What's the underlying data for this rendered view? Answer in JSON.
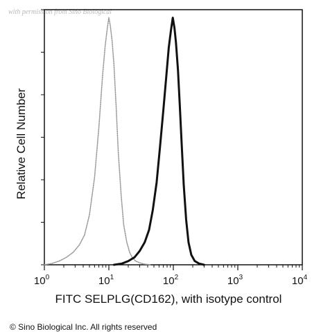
{
  "chart_data": {
    "type": "line",
    "title": "",
    "watermark": "with permission from Sino Biological",
    "xlabel": "FITC SELPLG(CD162), with isotype control",
    "ylabel": "Relative Cell Number",
    "xscale": "log",
    "xlim": [
      1,
      10000
    ],
    "ylim": [
      0,
      1
    ],
    "y_ticks_labeled": false,
    "grid": false,
    "legend": "none",
    "x_ticks": [
      {
        "base": "10",
        "exp": "0",
        "value": 1
      },
      {
        "base": "10",
        "exp": "1",
        "value": 10
      },
      {
        "base": "10",
        "exp": "2",
        "value": 100
      },
      {
        "base": "10",
        "exp": "3",
        "value": 1000
      },
      {
        "base": "10",
        "exp": "4",
        "value": 10000
      }
    ],
    "series": [
      {
        "color": "#9a9a9a",
        "style": "dotted",
        "x": [
          1.0,
          1.3,
          1.7,
          2.2,
          2.8,
          3.5,
          4.2,
          5.0,
          6.0,
          7.0,
          8.0,
          8.8,
          9.5,
          10.0,
          10.5,
          11.2,
          12.0,
          13.0,
          14.0,
          15.5,
          17.0,
          19.0,
          21.0,
          23.0,
          26.0,
          30.0,
          35.0,
          45.0
        ],
        "y": [
          0.0,
          0.005,
          0.015,
          0.03,
          0.05,
          0.08,
          0.12,
          0.2,
          0.35,
          0.55,
          0.76,
          0.88,
          0.95,
          0.99,
          0.96,
          0.9,
          0.8,
          0.63,
          0.45,
          0.28,
          0.16,
          0.09,
          0.05,
          0.03,
          0.015,
          0.008,
          0.003,
          0.0
        ]
      },
      {
        "color": "#111111",
        "style": "solid",
        "x": [
          12.0,
          16.0,
          20.0,
          25.0,
          30.0,
          36.0,
          42.0,
          48.0,
          55.0,
          62.0,
          70.0,
          78.0,
          85.0,
          92.0,
          98.0,
          104.0,
          110.0,
          118.0,
          126.0,
          135.0,
          145.0,
          158.0,
          172.0,
          190.0,
          215.0,
          250.0,
          300.0
        ],
        "y": [
          0.0,
          0.005,
          0.015,
          0.03,
          0.055,
          0.09,
          0.14,
          0.22,
          0.33,
          0.47,
          0.62,
          0.76,
          0.87,
          0.94,
          0.99,
          0.95,
          0.89,
          0.78,
          0.64,
          0.48,
          0.32,
          0.18,
          0.09,
          0.04,
          0.015,
          0.005,
          0.0
        ]
      }
    ]
  },
  "footer": {
    "copyright": "© Sino Biological Inc. All rights reserved"
  }
}
